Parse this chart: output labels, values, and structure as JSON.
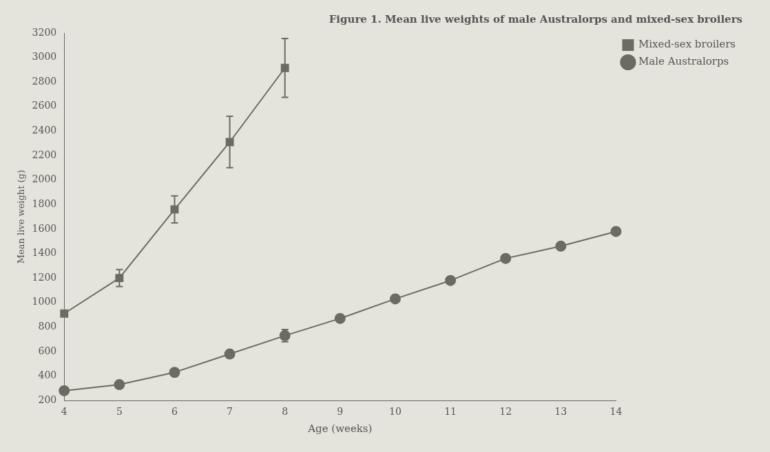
{
  "chart_data": {
    "type": "line",
    "title": "Figure 1. Mean live weights of male Australorps and mixed-sex broilers",
    "xlabel": "Age (weeks)",
    "ylabel": "Mean live weight (g)",
    "categories": [
      "4",
      "5",
      "6",
      "7",
      "8",
      "9",
      "10",
      "11",
      "12",
      "13",
      "14"
    ],
    "series": [
      {
        "name": "Mixed-sex broilers",
        "color": "#6b6b63",
        "marker": "square",
        "values": [
          910,
          1200,
          1760,
          2310,
          2915,
          null,
          null,
          null,
          null,
          null,
          null
        ],
        "errors": [
          null,
          70,
          110,
          210,
          240,
          null,
          null,
          null,
          null,
          null,
          null
        ]
      },
      {
        "name": "Male Australorps",
        "color": "#6b6b63",
        "marker": "circle",
        "values": [
          280,
          330,
          430,
          580,
          730,
          870,
          1030,
          1180,
          1360,
          1460,
          1580
        ],
        "errors": [
          null,
          null,
          null,
          null,
          50,
          null,
          null,
          null,
          null,
          null,
          null
        ]
      }
    ],
    "ylim": [
      200,
      3200
    ],
    "yticks": [
      200,
      400,
      600,
      800,
      1000,
      1200,
      1400,
      1600,
      1800,
      2000,
      2200,
      2400,
      2600,
      2800,
      3000,
      3200
    ],
    "grid": false,
    "legend": "top right",
    "line_style": "solid"
  }
}
